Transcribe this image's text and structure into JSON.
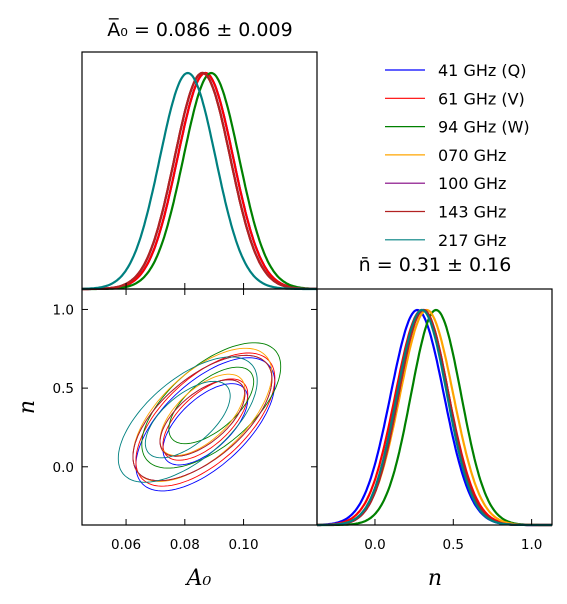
{
  "chart_data": {
    "type": "line",
    "series": [
      {
        "name": "41 GHz (Q)",
        "color": "#0000ff",
        "a0_mean": 0.087,
        "a0_sigma": 0.0095,
        "n_mean": 0.27,
        "n_sigma": 0.17
      },
      {
        "name": "61 GHz (V)",
        "color": "#ff0000",
        "a0_mean": 0.087,
        "a0_sigma": 0.0095,
        "n_mean": 0.3,
        "n_sigma": 0.17
      },
      {
        "name": "94 GHz (W)",
        "color": "#008000",
        "a0_mean": 0.089,
        "a0_sigma": 0.0095,
        "n_mean": 0.39,
        "n_sigma": 0.16
      },
      {
        "name": "070 GHz",
        "color": "#ffa500",
        "a0_mean": 0.086,
        "a0_sigma": 0.0095,
        "n_mean": 0.33,
        "n_sigma": 0.17
      },
      {
        "name": "100 GHz",
        "color": "#800080",
        "a0_mean": 0.086,
        "a0_sigma": 0.0095,
        "n_mean": 0.31,
        "n_sigma": 0.16
      },
      {
        "name": "143 GHz",
        "color": "#b22222",
        "a0_mean": 0.086,
        "a0_sigma": 0.0095,
        "n_mean": 0.31,
        "n_sigma": 0.16
      },
      {
        "name": "217 GHz",
        "color": "#008080",
        "a0_mean": 0.081,
        "a0_sigma": 0.0095,
        "n_mean": 0.3,
        "n_sigma": 0.16
      }
    ],
    "a0_panel_title": "A̅₀ = 0.086 ± 0.009",
    "n_panel_title": "n̄ = 0.31 ± 0.16",
    "xlabel_a0": "A₀",
    "xlabel_n": "n",
    "ylabel_n": "n",
    "a0_range": [
      0.045,
      0.125
    ],
    "n_range": [
      -0.37,
      1.13
    ],
    "a0_ticks": [
      "0.06",
      "0.08",
      "0.10"
    ],
    "a0_tick_values": [
      0.06,
      0.08,
      0.1
    ],
    "n_ticks": [
      "0.0",
      "0.5",
      "1.0"
    ],
    "n_tick_values": [
      0.0,
      0.5,
      1.0
    ],
    "corr": 0.62,
    "legend_position": "top-right"
  }
}
